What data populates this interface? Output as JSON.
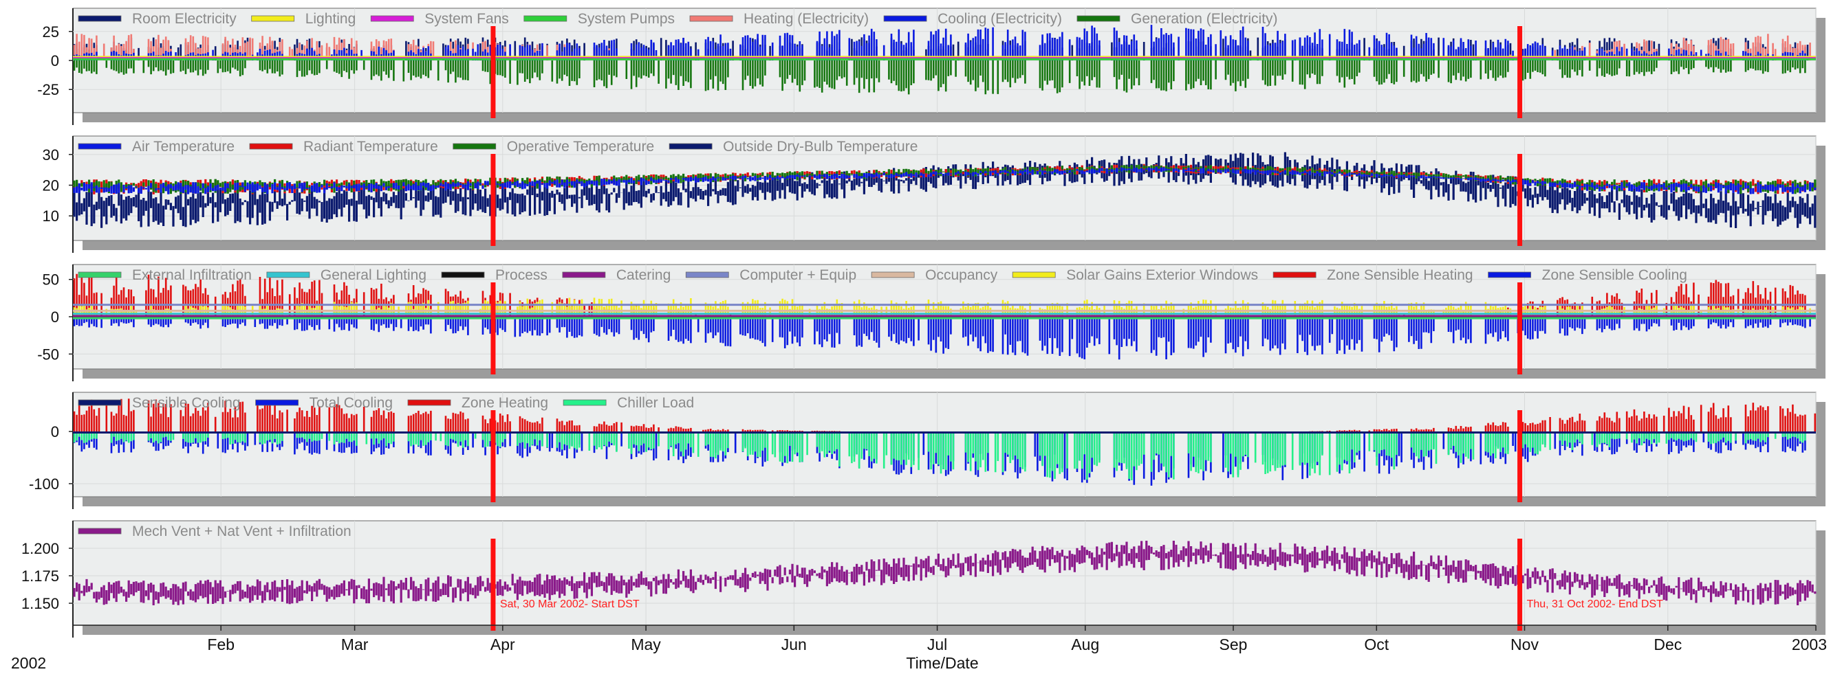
{
  "chart_data": {
    "type": "line",
    "year_label": "2002",
    "xlabel": "Time/Date",
    "x_ticks": [
      "Feb",
      "Mar",
      "Apr",
      "May",
      "Jun",
      "Jul",
      "Aug",
      "Sep",
      "Oct",
      "Nov",
      "Dec",
      "2003"
    ],
    "xlim": [
      "2002-01-01",
      "2003-01-01"
    ],
    "markers": [
      {
        "date": "2002-03-30",
        "label": "Sat, 30 Mar 2002- Start DST"
      },
      {
        "date": "2002-10-31",
        "label": "Thu, 31 Oct 2002- End DST"
      }
    ],
    "panels": [
      {
        "name": "electricity",
        "ylim": [
          -45,
          45
        ],
        "yticks": [
          25,
          0,
          -25
        ],
        "legend": [
          {
            "name": "Room Electricity",
            "color": "#0b1a6e"
          },
          {
            "name": "Lighting",
            "color": "#f2ec1c"
          },
          {
            "name": "System Fans",
            "color": "#d61ed6"
          },
          {
            "name": "System Pumps",
            "color": "#2ecf3a"
          },
          {
            "name": "Heating (Electricity)",
            "color": "#f07a74"
          },
          {
            "name": "Cooling (Electricity)",
            "color": "#0a1ae0"
          },
          {
            "name": "Generation (Electricity)",
            "color": "#15760f"
          }
        ],
        "series": [
          {
            "name": "Room Electricity",
            "style": "bars",
            "color": "#0b1a6e",
            "x": [
              "2002-01-15",
              "2002-02-15",
              "2002-03-15",
              "2002-04-15",
              "2002-05-15",
              "2002-06-15",
              "2002-07-15",
              "2002-08-15",
              "2002-09-15",
              "2002-10-15",
              "2002-11-15",
              "2002-12-15"
            ],
            "y": [
              19,
              19,
              19,
              19,
              19,
              19,
              19,
              19,
              19,
              19,
              19,
              19
            ]
          },
          {
            "name": "Heating (Electricity)",
            "style": "bars",
            "color": "#f07a74",
            "x": [
              "2002-01-15",
              "2002-02-15",
              "2002-03-15",
              "2002-04-15",
              "2002-05-15",
              "2002-06-15",
              "2002-07-15",
              "2002-08-15",
              "2002-09-15",
              "2002-10-15",
              "2002-11-15",
              "2002-12-15"
            ],
            "y": [
              22,
              20,
              18,
              14,
              0,
              0,
              0,
              0,
              0,
              2,
              15,
              22
            ]
          },
          {
            "name": "Cooling (Electricity)",
            "style": "bars",
            "color": "#0a1ae0",
            "x": [
              "2002-01-15",
              "2002-02-15",
              "2002-03-15",
              "2002-04-15",
              "2002-05-15",
              "2002-06-15",
              "2002-07-15",
              "2002-08-15",
              "2002-09-15",
              "2002-10-15",
              "2002-11-15",
              "2002-12-15"
            ],
            "y": [
              8,
              10,
              12,
              16,
              21,
              26,
              28,
              30,
              28,
              22,
              12,
              8
            ]
          },
          {
            "name": "Generation (Electricity)",
            "style": "bars",
            "color": "#15760f",
            "x": [
              "2002-01-15",
              "2002-02-15",
              "2002-03-15",
              "2002-04-15",
              "2002-05-15",
              "2002-06-15",
              "2002-07-15",
              "2002-08-15",
              "2002-09-15",
              "2002-10-15",
              "2002-11-15",
              "2002-12-15"
            ],
            "y": [
              -12,
              -14,
              -18,
              -22,
              -26,
              -28,
              -28,
              -27,
              -24,
              -20,
              -14,
              -11
            ]
          },
          {
            "name": "Lighting",
            "style": "line",
            "color": "#f2ec1c",
            "x": [
              "2002-01-01",
              "2003-01-01"
            ],
            "y": [
              3,
              3
            ]
          },
          {
            "name": "System Fans",
            "style": "line",
            "color": "#d61ed6",
            "x": [
              "2002-01-01",
              "2003-01-01"
            ],
            "y": [
              2,
              2
            ]
          },
          {
            "name": "System Pumps",
            "style": "line",
            "color": "#2ecf3a",
            "x": [
              "2002-01-01",
              "2003-01-01"
            ],
            "y": [
              1,
              1
            ]
          }
        ]
      },
      {
        "name": "temperatures",
        "ylim": [
          2,
          36
        ],
        "yticks": [
          30,
          20,
          10
        ],
        "legend": [
          {
            "name": "Air Temperature",
            "color": "#0a1ae0"
          },
          {
            "name": "Radiant Temperature",
            "color": "#e01010"
          },
          {
            "name": "Operative Temperature",
            "color": "#15760f"
          },
          {
            "name": "Outside Dry-Bulb Temperature",
            "color": "#0b1a6e"
          }
        ],
        "series": [
          {
            "name": "Outside Dry-Bulb Temperature",
            "style": "band",
            "color": "#0b1a6e",
            "x": [
              "2002-01-15",
              "2002-02-15",
              "2002-03-15",
              "2002-04-15",
              "2002-05-15",
              "2002-06-15",
              "2002-07-15",
              "2002-08-15",
              "2002-09-15",
              "2002-10-15",
              "2002-11-15",
              "2002-12-15"
            ],
            "ymin": [
              6,
              7,
              9,
              10,
              13,
              16,
              19,
              20,
              19,
              15,
              9,
              6
            ],
            "ymax": [
              19,
              20,
              21,
              22,
              23,
              25,
              28,
              30,
              31,
              26,
              20,
              18
            ]
          },
          {
            "name": "Radiant Temperature",
            "style": "band",
            "color": "#e01010",
            "x": [
              "2002-01-15",
              "2002-02-15",
              "2002-03-15",
              "2002-04-15",
              "2002-05-15",
              "2002-06-15",
              "2002-07-15",
              "2002-08-15",
              "2002-09-15",
              "2002-10-15",
              "2002-11-15",
              "2002-12-15"
            ],
            "ymin": [
              17,
              17,
              18,
              19,
              21,
              22,
              23,
              24,
              23,
              22,
              18,
              17
            ],
            "ymax": [
              22,
              22,
              22,
              23,
              24,
              25,
              26,
              27,
              26,
              24,
              22,
              22
            ]
          },
          {
            "name": "Operative Temperature",
            "style": "band",
            "color": "#15760f",
            "x": [
              "2002-01-15",
              "2002-02-15",
              "2002-03-15",
              "2002-04-15",
              "2002-05-15",
              "2002-06-15",
              "2002-07-15",
              "2002-08-15",
              "2002-09-15",
              "2002-10-15",
              "2002-11-15",
              "2002-12-15"
            ],
            "ymin": [
              17,
              17,
              18,
              19,
              21,
              22,
              23,
              24,
              23,
              22,
              18,
              17
            ],
            "ymax": [
              22,
              22,
              22,
              23,
              24,
              25,
              26,
              27,
              26,
              24,
              22,
              22
            ]
          },
          {
            "name": "Air Temperature",
            "style": "band",
            "color": "#0a1ae0",
            "x": [
              "2002-01-15",
              "2002-02-15",
              "2002-03-15",
              "2002-04-15",
              "2002-05-15",
              "2002-06-15",
              "2002-07-15",
              "2002-08-15",
              "2002-09-15",
              "2002-10-15",
              "2002-11-15",
              "2002-12-15"
            ],
            "ymin": [
              17,
              17,
              18,
              19,
              21,
              22,
              23,
              24,
              23,
              22,
              18,
              17
            ],
            "ymax": [
              21,
              21,
              21,
              22,
              23,
              24,
              25,
              26,
              25,
              23,
              21,
              21
            ]
          }
        ]
      },
      {
        "name": "zone-gains",
        "ylim": [
          -70,
          70
        ],
        "yticks": [
          50,
          0,
          -50
        ],
        "legend": [
          {
            "name": "External Infiltration",
            "color": "#35d16a"
          },
          {
            "name": "General Lighting",
            "color": "#35c4cf"
          },
          {
            "name": "Process",
            "color": "#111111"
          },
          {
            "name": "Catering",
            "color": "#8a1a8a"
          },
          {
            "name": "Computer + Equip",
            "color": "#7a86c8"
          },
          {
            "name": "Occupancy",
            "color": "#d9b8a0"
          },
          {
            "name": "Solar Gains Exterior Windows",
            "color": "#f2ec1c"
          },
          {
            "name": "Zone Sensible Heating",
            "color": "#e01010"
          },
          {
            "name": "Zone Sensible Cooling",
            "color": "#0a1ae0"
          }
        ],
        "series": [
          {
            "name": "Zone Sensible Heating",
            "style": "bars",
            "color": "#e01010",
            "x": [
              "2002-01-15",
              "2002-02-15",
              "2002-03-15",
              "2002-04-15",
              "2002-05-15",
              "2002-06-15",
              "2002-07-15",
              "2002-08-15",
              "2002-09-15",
              "2002-10-15",
              "2002-11-15",
              "2002-12-15"
            ],
            "y": [
              55,
              50,
              40,
              25,
              5,
              0,
              0,
              0,
              0,
              5,
              30,
              50
            ]
          },
          {
            "name": "Solar Gains Exterior Windows",
            "style": "bars",
            "color": "#f2ec1c",
            "x": [
              "2002-01-15",
              "2002-02-15",
              "2002-03-15",
              "2002-04-15",
              "2002-05-15",
              "2002-06-15",
              "2002-07-15",
              "2002-08-15",
              "2002-09-15",
              "2002-10-15",
              "2002-11-15",
              "2002-12-15"
            ],
            "y": [
              15,
              18,
              22,
              25,
              24,
              22,
              22,
              22,
              22,
              20,
              16,
              14
            ]
          },
          {
            "name": "Computer + Equip",
            "style": "line",
            "color": "#7a86c8",
            "x": [
              "2002-01-01",
              "2003-01-01"
            ],
            "y": [
              16,
              16
            ]
          },
          {
            "name": "Occupancy",
            "style": "line",
            "color": "#d9b8a0",
            "x": [
              "2002-01-01",
              "2003-01-01"
            ],
            "y": [
              8,
              8
            ]
          },
          {
            "name": "Zone Sensible Cooling",
            "style": "bars",
            "color": "#0a1ae0",
            "x": [
              "2002-01-15",
              "2002-02-15",
              "2002-03-15",
              "2002-04-15",
              "2002-05-15",
              "2002-06-15",
              "2002-07-15",
              "2002-08-15",
              "2002-09-15",
              "2002-10-15",
              "2002-11-15",
              "2002-12-15"
            ],
            "y": [
              -15,
              -18,
              -22,
              -28,
              -38,
              -45,
              -52,
              -58,
              -52,
              -40,
              -22,
              -15
            ]
          },
          {
            "name": "Process",
            "style": "line",
            "color": "#111111",
            "x": [
              "2002-01-01",
              "2003-01-01"
            ],
            "y": [
              0,
              0
            ]
          },
          {
            "name": "External Infiltration",
            "style": "line",
            "color": "#35d16a",
            "x": [
              "2002-01-01",
              "2003-01-01"
            ],
            "y": [
              -2,
              -2
            ]
          },
          {
            "name": "General Lighting",
            "style": "line",
            "color": "#35c4cf",
            "x": [
              "2002-01-01",
              "2003-01-01"
            ],
            "y": [
              4,
              4
            ]
          },
          {
            "name": "Catering",
            "style": "line",
            "color": "#8a1a8a",
            "x": [
              "2002-01-01",
              "2003-01-01"
            ],
            "y": [
              1,
              1
            ]
          }
        ]
      },
      {
        "name": "plant-loads",
        "ylim": [
          -125,
          75
        ],
        "yticks": [
          0,
          -100
        ],
        "legend": [
          {
            "name": "Sensible Cooling",
            "color": "#0b1a6e"
          },
          {
            "name": "Total Cooling",
            "color": "#0a1ae0"
          },
          {
            "name": "Zone Heating",
            "color": "#e01010"
          },
          {
            "name": "Chiller Load",
            "color": "#25f08a"
          }
        ],
        "series": [
          {
            "name": "Zone Heating",
            "style": "bars",
            "color": "#e01010",
            "x": [
              "2002-01-15",
              "2002-02-15",
              "2002-03-15",
              "2002-04-15",
              "2002-05-15",
              "2002-06-15",
              "2002-07-15",
              "2002-08-15",
              "2002-09-15",
              "2002-10-15",
              "2002-11-15",
              "2002-12-15"
            ],
            "y": [
              60,
              55,
              42,
              25,
              5,
              0,
              0,
              0,
              0,
              8,
              35,
              55
            ]
          },
          {
            "name": "Total Cooling",
            "style": "bars",
            "color": "#0a1ae0",
            "x": [
              "2002-01-15",
              "2002-02-15",
              "2002-03-15",
              "2002-04-15",
              "2002-05-15",
              "2002-06-15",
              "2002-07-15",
              "2002-08-15",
              "2002-09-15",
              "2002-10-15",
              "2002-11-15",
              "2002-12-15"
            ],
            "y": [
              -40,
              -42,
              -45,
              -50,
              -60,
              -75,
              -90,
              -100,
              -90,
              -70,
              -45,
              -40
            ]
          },
          {
            "name": "Chiller Load",
            "style": "bars",
            "color": "#25f08a",
            "x": [
              "2002-01-15",
              "2002-02-15",
              "2002-03-15",
              "2002-04-15",
              "2002-05-15",
              "2002-06-15",
              "2002-07-15",
              "2002-08-15",
              "2002-09-15",
              "2002-10-15",
              "2002-11-15",
              "2002-12-15"
            ],
            "y": [
              -22,
              -25,
              -28,
              -35,
              -50,
              -70,
              -85,
              -92,
              -85,
              -62,
              -30,
              -22
            ]
          },
          {
            "name": "Sensible Cooling",
            "style": "line",
            "color": "#0b1a6e",
            "x": [
              "2002-01-01",
              "2003-01-01"
            ],
            "y": [
              -2,
              -2
            ]
          }
        ]
      },
      {
        "name": "ventilation",
        "ylim": [
          1.13,
          1.225
        ],
        "yticks": [
          1.2,
          1.175,
          1.15
        ],
        "ytick_labels": [
          "1.200",
          "1.175",
          "1.150"
        ],
        "legend": [
          {
            "name": "Mech Vent + Nat Vent + Infiltration",
            "color": "#8a1a8a"
          }
        ],
        "series": [
          {
            "name": "Mech Vent + Nat Vent + Infiltration",
            "style": "band",
            "color": "#8a1a8a",
            "x": [
              "2002-01-15",
              "2002-02-15",
              "2002-03-15",
              "2002-04-15",
              "2002-05-15",
              "2002-06-15",
              "2002-07-15",
              "2002-08-15",
              "2002-09-15",
              "2002-10-15",
              "2002-11-15",
              "2002-12-15"
            ],
            "ymin": [
              1.148,
              1.148,
              1.15,
              1.153,
              1.158,
              1.165,
              1.175,
              1.18,
              1.178,
              1.168,
              1.155,
              1.148
            ],
            "ymax": [
              1.172,
              1.172,
              1.175,
              1.178,
              1.182,
              1.19,
              1.2,
              1.208,
              1.205,
              1.195,
              1.178,
              1.172
            ]
          }
        ]
      }
    ]
  }
}
